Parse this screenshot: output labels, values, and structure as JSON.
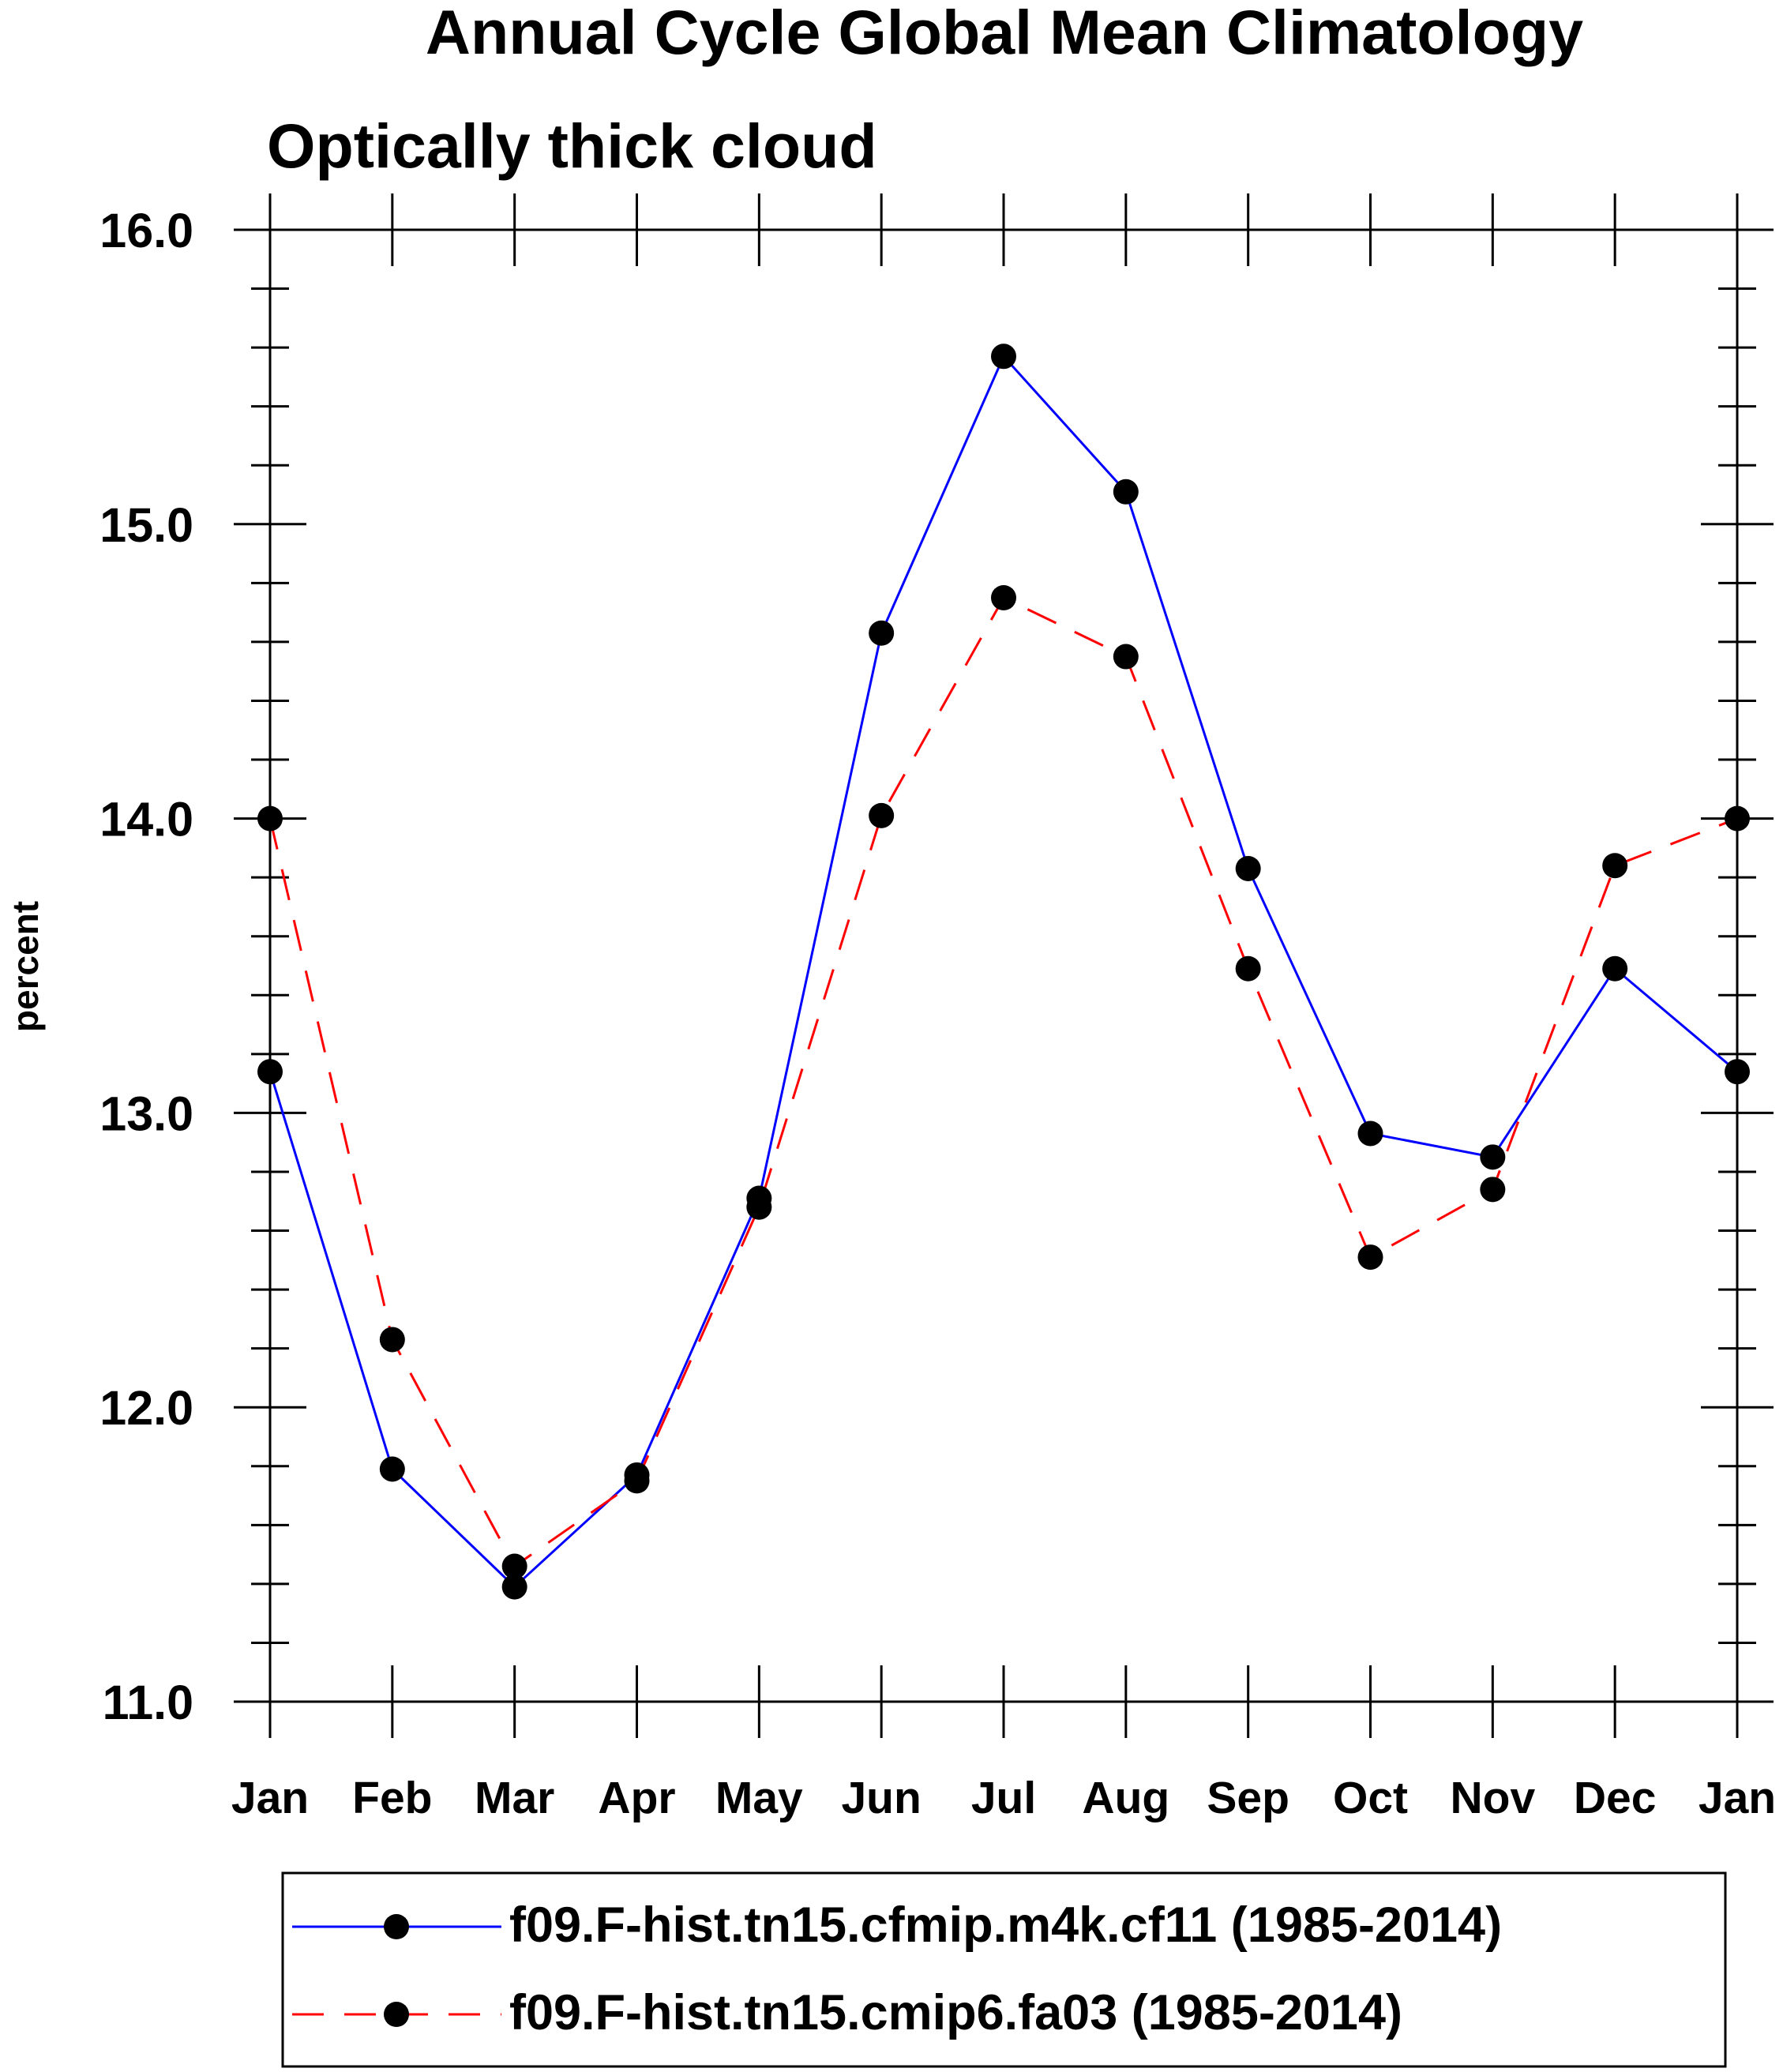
{
  "chart_data": {
    "type": "line",
    "title": "Annual Cycle Global Mean Climatology",
    "subtitle": "Optically thick cloud",
    "xlabel": "",
    "ylabel": "percent",
    "ylim": [
      11.0,
      16.0
    ],
    "y_major_ticks": [
      11.0,
      12.0,
      13.0,
      14.0,
      15.0,
      16.0
    ],
    "y_tick_labels": [
      "11.0",
      "12.0",
      "13.0",
      "14.0",
      "15.0",
      "16.0"
    ],
    "y_minor_step": 0.2,
    "categories": [
      "Jan",
      "Feb",
      "Mar",
      "Apr",
      "May",
      "Jun",
      "Jul",
      "Aug",
      "Sep",
      "Oct",
      "Nov",
      "Dec",
      "Jan"
    ],
    "grid": false,
    "legend_position": "bottom",
    "series": [
      {
        "name": "f09.F-hist.tn15.cfmip.m4k.cf11 (1985-2014)",
        "color": "#0000ff",
        "dash": "solid",
        "values": [
          13.14,
          11.79,
          11.39,
          11.77,
          12.71,
          14.63,
          15.57,
          15.11,
          13.83,
          12.93,
          12.85,
          13.49,
          13.14
        ]
      },
      {
        "name": "f09.F-hist.tn15.cmip6.fa03 (1985-2014)",
        "color": "#ff0000",
        "dash": "dashed",
        "values": [
          14.0,
          12.23,
          11.46,
          11.75,
          12.68,
          14.01,
          14.75,
          14.55,
          13.49,
          12.51,
          12.74,
          13.84,
          14.0
        ]
      }
    ]
  }
}
